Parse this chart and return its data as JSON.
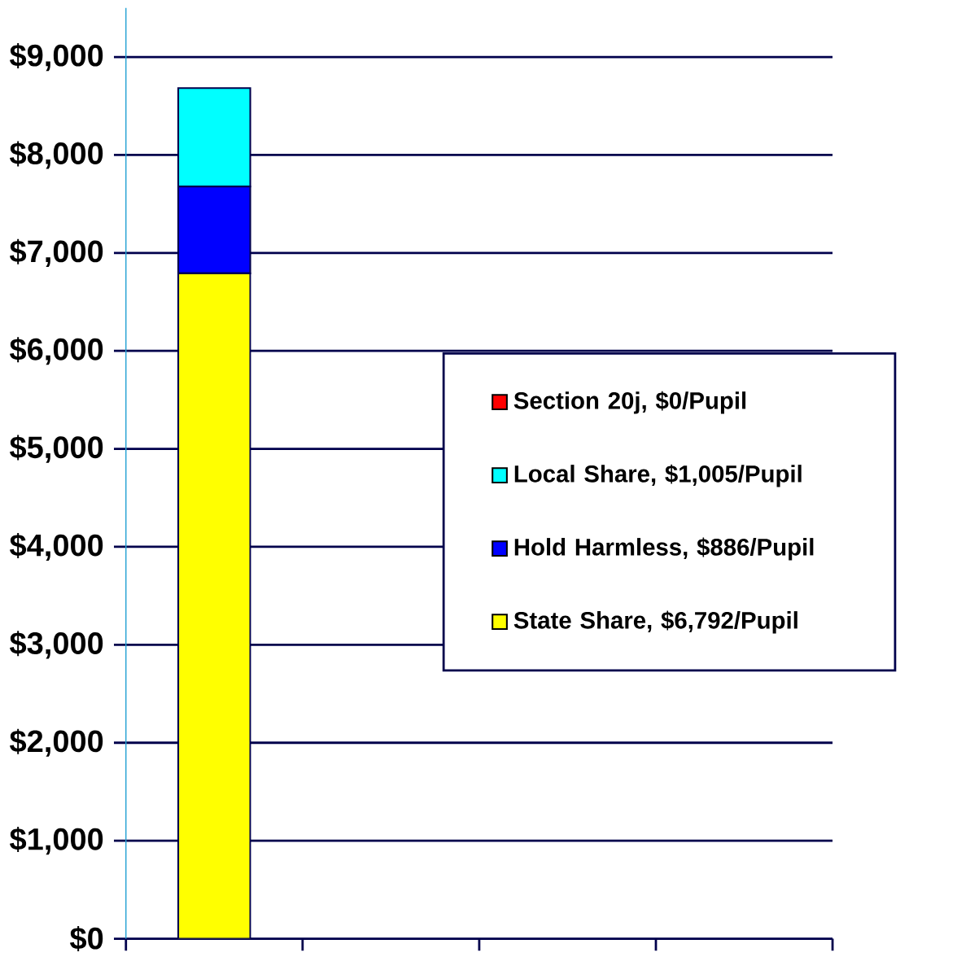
{
  "chart_data": {
    "type": "bar",
    "stacked": true,
    "categories": [
      null,
      null,
      null,
      null
    ],
    "series": [
      {
        "name": "State Share, $6,792/Pupil",
        "color": "#ffff00",
        "values": [
          6792,
          null,
          null,
          null
        ]
      },
      {
        "name": "Hold Harmless, $886/Pupil",
        "color": "#0000ff",
        "values": [
          886,
          null,
          null,
          null
        ]
      },
      {
        "name": "Local Share, $1,005/Pupil",
        "color": "#00ffff",
        "values": [
          1005,
          null,
          null,
          null
        ]
      },
      {
        "name": "Section 20j, $0/Pupil",
        "color": "#ff0000",
        "values": [
          0,
          null,
          null,
          null
        ]
      }
    ],
    "ylim": [
      0,
      9500
    ],
    "yticks": [
      {
        "value": 0,
        "label": "$0"
      },
      {
        "value": 1000,
        "label": "$1,000"
      },
      {
        "value": 2000,
        "label": "$2,000"
      },
      {
        "value": 3000,
        "label": "$3,000"
      },
      {
        "value": 4000,
        "label": "$4,000"
      },
      {
        "value": 5000,
        "label": "$5,000"
      },
      {
        "value": 6000,
        "label": "$6,000"
      },
      {
        "value": 7000,
        "label": "$7,000"
      },
      {
        "value": 8000,
        "label": "$8,000"
      },
      {
        "value": 9000,
        "label": "$9,000"
      }
    ],
    "grid": "y",
    "legend": "right"
  }
}
